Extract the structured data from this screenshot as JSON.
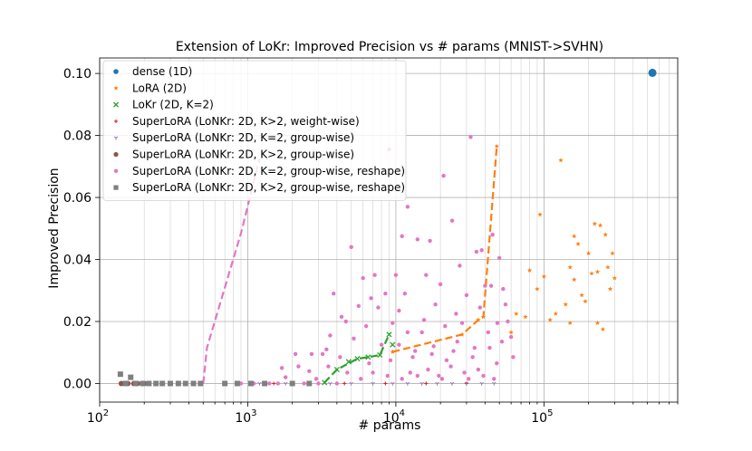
{
  "chart_data": {
    "type": "scatter",
    "title": "Extension of LoKr: Improved Precision vs # params (MNIST->SVHN)",
    "xlabel": "# params",
    "ylabel": "Improved Precision",
    "xscale": "log",
    "xlim": [
      100,
      800000
    ],
    "ylim": [
      -0.006,
      0.105
    ],
    "yticks": [
      0.0,
      0.02,
      0.04,
      0.06,
      0.08,
      0.1
    ],
    "ytick_labels": [
      "0.00",
      "0.02",
      "0.04",
      "0.06",
      "0.08",
      "0.10"
    ],
    "xticks": [
      {
        "value": 100,
        "base": "10",
        "exp": "2"
      },
      {
        "value": 1000,
        "base": "10",
        "exp": "3"
      },
      {
        "value": 10000,
        "base": "10",
        "exp": "4"
      },
      {
        "value": 100000,
        "base": "10",
        "exp": "5"
      }
    ],
    "grid": true,
    "legend_position": "upper-left",
    "series": [
      {
        "name": "dense (1D)",
        "color": "#1f77b4",
        "marker": "circle",
        "size": 4.5,
        "points": [
          [
            540000,
            0.1002
          ]
        ]
      },
      {
        "name": "LoRA (2D)",
        "color": "#ff7f0e",
        "marker": "star",
        "size": 2.2,
        "line": [
          [
            9500,
            0.0102
          ],
          [
            28000,
            0.0158
          ],
          [
            36000,
            0.0205
          ],
          [
            39000,
            0.0215
          ],
          [
            48000,
            0.0765
          ]
        ],
        "points": [
          [
            9500,
            0.0102
          ],
          [
            28000,
            0.0158
          ],
          [
            36000,
            0.0205
          ],
          [
            39000,
            0.0215
          ],
          [
            48000,
            0.0765
          ],
          [
            80000,
            0.0365
          ],
          [
            90000,
            0.0305
          ],
          [
            94000,
            0.0545
          ],
          [
            100000,
            0.0345
          ],
          [
            110000,
            0.0205
          ],
          [
            120000,
            0.0225
          ],
          [
            130000,
            0.072
          ],
          [
            150000,
            0.0375
          ],
          [
            160000,
            0.0335
          ],
          [
            170000,
            0.045
          ],
          [
            180000,
            0.0285
          ],
          [
            200000,
            0.042
          ],
          [
            210000,
            0.0355
          ],
          [
            220000,
            0.0515
          ],
          [
            230000,
            0.036
          ],
          [
            240000,
            0.051
          ],
          [
            260000,
            0.048
          ],
          [
            270000,
            0.0375
          ],
          [
            290000,
            0.042
          ],
          [
            300000,
            0.034
          ],
          [
            150000,
            0.0195
          ],
          [
            190000,
            0.0265
          ],
          [
            230000,
            0.0195
          ],
          [
            250000,
            0.0175
          ],
          [
            280000,
            0.0305
          ],
          [
            60000,
            0.0165
          ],
          [
            65000,
            0.0225
          ],
          [
            75000,
            0.0215
          ],
          [
            140000,
            0.0255
          ],
          [
            160000,
            0.0475
          ]
        ]
      },
      {
        "name": "LoKr (2D, K=2)",
        "color": "#2ca02c",
        "marker": "x",
        "size": 2.6,
        "line": [
          [
            3300,
            0.0003
          ],
          [
            4000,
            0.0045
          ],
          [
            5500,
            0.008
          ],
          [
            6500,
            0.0085
          ],
          [
            7800,
            0.0092
          ],
          [
            9000,
            0.0158
          ]
        ],
        "points": [
          [
            3300,
            0.0003
          ],
          [
            4000,
            0.0045
          ],
          [
            5500,
            0.008
          ],
          [
            6500,
            0.0085
          ],
          [
            7800,
            0.0092
          ],
          [
            9000,
            0.0158
          ],
          [
            4800,
            0.007
          ],
          [
            9500,
            0.0125
          ]
        ]
      },
      {
        "name": "SuperLoRA (LoNKr: 2D, K>2, weight-wise)",
        "color": "#d62728",
        "marker": "plus",
        "size": 2,
        "points": [
          [
            1500,
            0.0
          ],
          [
            2400,
            0.0
          ],
          [
            4500,
            0.0
          ],
          [
            8500,
            0.0
          ],
          [
            16000,
            0.0
          ],
          [
            30000,
            0.0
          ]
        ]
      },
      {
        "name": "SuperLoRA (LoNKr: 2D, K=2, group-wise)",
        "color": "#9467bd",
        "marker": "tri-down",
        "size": 1.8,
        "points": [
          [
            1200,
            0.0
          ],
          [
            1800,
            0.0
          ],
          [
            2600,
            0.0
          ],
          [
            3600,
            0.0
          ],
          [
            5000,
            0.0
          ],
          [
            7000,
            0.0
          ],
          [
            9500,
            0.0
          ],
          [
            12000,
            0.0
          ],
          [
            15000,
            0.0
          ],
          [
            19000,
            0.0
          ],
          [
            24000,
            0.0
          ],
          [
            30000,
            0.0
          ],
          [
            38000,
            0.0
          ],
          [
            46000,
            0.0
          ]
        ]
      },
      {
        "name": "SuperLoRA (LoNKr: 2D, K>2, group-wise)",
        "color": "#8c564b",
        "marker": "circle",
        "size": 3,
        "points": [
          [
            140,
            0.0
          ],
          [
            155,
            0.0
          ],
          [
            170,
            0.0
          ],
          [
            180,
            0.0
          ],
          [
            200,
            0.0
          ]
        ]
      },
      {
        "name": "SuperLoRA (LoNKr: 2D, K=2, group-wise, reshape)",
        "color": "#e377c2",
        "marker": "circle",
        "size": 2.2,
        "line": [
          [
            500,
            0.0
          ],
          [
            530,
            0.0115
          ],
          [
            900,
            0.0485
          ],
          [
            1200,
            0.0725
          ]
        ],
        "points": [
          [
            900,
            0.0
          ],
          [
            1100,
            0.0
          ],
          [
            1400,
            0.0
          ],
          [
            1600,
            0.0
          ],
          [
            1800,
            0.002
          ],
          [
            2000,
            0.0
          ],
          [
            2200,
            0.0055
          ],
          [
            2400,
            0.0
          ],
          [
            2600,
            0.004
          ],
          [
            3000,
            0.0
          ],
          [
            3500,
            0.0055
          ],
          [
            4000,
            0.0
          ],
          [
            1700,
            0.005
          ],
          [
            2100,
            0.0095
          ],
          [
            2700,
            0.0095
          ],
          [
            3400,
            0.011
          ],
          [
            4200,
            0.0085
          ],
          [
            5200,
            0.0145
          ],
          [
            6300,
            0.0185
          ],
          [
            3600,
            0.0155
          ],
          [
            4600,
            0.02
          ],
          [
            5600,
            0.025
          ],
          [
            6800,
            0.0275
          ],
          [
            8500,
            0.029
          ],
          [
            7200,
            0.035
          ],
          [
            9000,
            0.0755
          ],
          [
            11000,
            0.0475
          ],
          [
            12000,
            0.057
          ],
          [
            14000,
            0.0465
          ],
          [
            17000,
            0.046
          ],
          [
            21000,
            0.067
          ],
          [
            24000,
            0.0525
          ],
          [
            32000,
            0.0795
          ],
          [
            35000,
            0.0425
          ],
          [
            40000,
            0.0315
          ],
          [
            44000,
            0.0315
          ],
          [
            50000,
            0.0405
          ],
          [
            53000,
            0.0305
          ],
          [
            55000,
            0.0255
          ],
          [
            57000,
            0.02
          ],
          [
            60000,
            0.015
          ],
          [
            62000,
            0.0085
          ],
          [
            5000,
            0.044
          ],
          [
            6000,
            0.034
          ],
          [
            3800,
            0.029
          ],
          [
            4300,
            0.0215
          ],
          [
            7600,
            0.0245
          ],
          [
            3200,
            0.0095
          ],
          [
            10000,
            0.035
          ],
          [
            11500,
            0.029
          ],
          [
            16000,
            0.035
          ],
          [
            20000,
            0.032
          ],
          [
            27000,
            0.038
          ],
          [
            30000,
            0.0285
          ],
          [
            38000,
            0.043
          ],
          [
            45000,
            0.048
          ],
          [
            8000,
            0.0125
          ],
          [
            9500,
            0.0195
          ],
          [
            10500,
            0.0235
          ],
          [
            13000,
            0.0085
          ],
          [
            15000,
            0.0165
          ],
          [
            18000,
            0.012
          ],
          [
            22000,
            0.0075
          ],
          [
            26000,
            0.0135
          ],
          [
            28000,
            0.0195
          ],
          [
            34000,
            0.0115
          ],
          [
            42000,
            0.0165
          ],
          [
            48000,
            0.0065
          ],
          [
            12500,
            0.0035
          ],
          [
            16500,
            0.0045
          ],
          [
            19500,
            0.0025
          ],
          [
            23500,
            0.0055
          ],
          [
            29000,
            0.0035
          ],
          [
            36000,
            0.0045
          ],
          [
            5800,
            0.0015
          ],
          [
            7000,
            0.0035
          ],
          [
            8800,
            0.0025
          ],
          [
            11000,
            0.0015
          ],
          [
            14000,
            0.0025
          ],
          [
            20500,
            0.0015
          ],
          [
            31000,
            0.0015
          ],
          [
            39000,
            0.0025
          ],
          [
            46000,
            0.0015
          ],
          [
            2900,
            0.0015
          ],
          [
            4700,
            0.0035
          ],
          [
            6600,
            0.0065
          ],
          [
            9200,
            0.0075
          ],
          [
            13500,
            0.0105
          ],
          [
            17500,
            0.0095
          ],
          [
            24500,
            0.0105
          ],
          [
            33000,
            0.0085
          ],
          [
            25500,
            0.0225
          ],
          [
            21500,
            0.0185
          ],
          [
            15500,
            0.0205
          ],
          [
            12000,
            0.0165
          ],
          [
            10500,
            0.0125
          ],
          [
            18500,
            0.0255
          ],
          [
            37000,
            0.0245
          ],
          [
            43000,
            0.0115
          ],
          [
            52000,
            0.0135
          ],
          [
            48500,
            0.0195
          ]
        ]
      },
      {
        "name": "SuperLoRA (LoNKr: 2D, K>2, group-wise, reshape)",
        "color": "#7f7f7f",
        "marker": "square",
        "size": 3,
        "points": [
          [
            138,
            0.003
          ],
          [
            150,
            0.0
          ],
          [
            162,
            0.002
          ],
          [
            175,
            0.0
          ],
          [
            195,
            0.0
          ],
          [
            215,
            0.0
          ],
          [
            240,
            0.0
          ],
          [
            265,
            0.0
          ],
          [
            300,
            0.0
          ],
          [
            340,
            0.0
          ],
          [
            380,
            0.0
          ],
          [
            430,
            0.0
          ],
          [
            480,
            0.0
          ],
          [
            700,
            0.0
          ],
          [
            850,
            0.0
          ],
          [
            1050,
            0.0
          ],
          [
            1300,
            0.0
          ],
          [
            2000,
            0.0
          ],
          [
            2600,
            0.0
          ]
        ]
      }
    ]
  }
}
